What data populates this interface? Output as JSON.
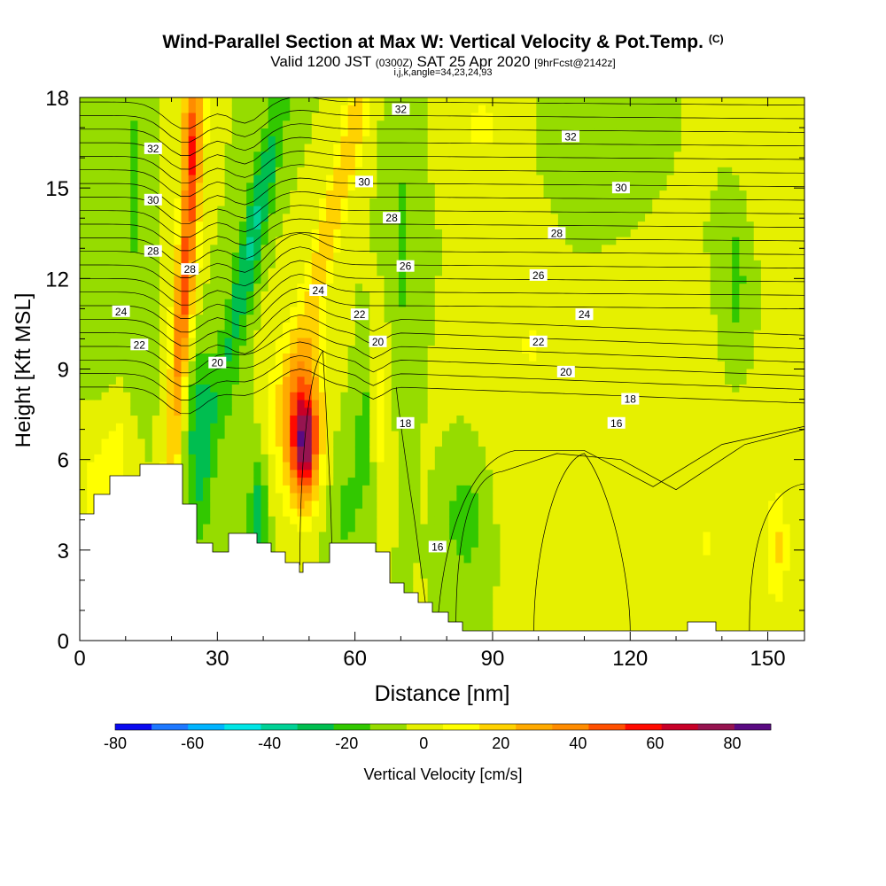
{
  "title": {
    "main": "Wind-Parallel Section at Max W: Vertical Velocity & Pot.Temp.",
    "copyright": "(C)",
    "valid_pre": "Valid 1200 JST",
    "valid_utc": "(0300Z)",
    "valid_post": "SAT 25 Apr 2020",
    "fcst": "[9hrFcst@2142z]",
    "sub": "i,j,k,angle=34,23,24,93"
  },
  "chart_data": {
    "type": "heatmap",
    "xlabel": "Distance [nm]",
    "ylabel": "Height [Kft MSL]",
    "xlim": [
      0,
      158
    ],
    "ylim": [
      0,
      18
    ],
    "xticks": [
      "0",
      "30",
      "60",
      "90",
      "120",
      "150"
    ],
    "yticks": [
      "0",
      "3",
      "6",
      "9",
      "12",
      "15",
      "18"
    ],
    "colorbar": {
      "label": "Vertical Velocity [cm/s]",
      "levels": [
        -80,
        -70,
        -60,
        -50,
        -40,
        -30,
        -20,
        -10,
        0,
        10,
        20,
        30,
        40,
        50,
        60,
        70,
        80,
        90
      ],
      "tick_labels": [
        "-80",
        "-60",
        "-40",
        "-20",
        "0",
        "20",
        "40",
        "60",
        "80"
      ],
      "colors": [
        "#0a0af0",
        "#1e78ff",
        "#00b4ff",
        "#00e6e6",
        "#00d296",
        "#00be50",
        "#32c800",
        "#96dc00",
        "#e6f000",
        "#ffff00",
        "#ffd200",
        "#ffaa00",
        "#ff8c00",
        "#ff5000",
        "#ff0a00",
        "#c80028",
        "#961450",
        "#5a0a82"
      ]
    },
    "contour_labels": [
      {
        "x": 16,
        "y": 16.3,
        "text": "32"
      },
      {
        "x": 70,
        "y": 17.6,
        "text": "32"
      },
      {
        "x": 107,
        "y": 16.7,
        "text": "32"
      },
      {
        "x": 16,
        "y": 14.6,
        "text": "30"
      },
      {
        "x": 62,
        "y": 15.2,
        "text": "30"
      },
      {
        "x": 118,
        "y": 15.0,
        "text": "30"
      },
      {
        "x": 16,
        "y": 12.9,
        "text": "28"
      },
      {
        "x": 24,
        "y": 12.3,
        "text": "28"
      },
      {
        "x": 68,
        "y": 14.0,
        "text": "28"
      },
      {
        "x": 104,
        "y": 13.5,
        "text": "28"
      },
      {
        "x": 71,
        "y": 12.4,
        "text": "26"
      },
      {
        "x": 100,
        "y": 12.1,
        "text": "26"
      },
      {
        "x": 9,
        "y": 10.9,
        "text": "24"
      },
      {
        "x": 52,
        "y": 11.6,
        "text": "24"
      },
      {
        "x": 110,
        "y": 10.8,
        "text": "24"
      },
      {
        "x": 13,
        "y": 9.8,
        "text": "22"
      },
      {
        "x": 61,
        "y": 10.8,
        "text": "22"
      },
      {
        "x": 100,
        "y": 9.9,
        "text": "22"
      },
      {
        "x": 30,
        "y": 9.2,
        "text": "20"
      },
      {
        "x": 65,
        "y": 9.9,
        "text": "20"
      },
      {
        "x": 106,
        "y": 8.9,
        "text": "20"
      },
      {
        "x": 120,
        "y": 8.0,
        "text": "18"
      },
      {
        "x": 71,
        "y": 7.2,
        "text": "18"
      },
      {
        "x": 117,
        "y": 7.2,
        "text": "16"
      },
      {
        "x": 78,
        "y": 3.1,
        "text": "16"
      }
    ]
  }
}
